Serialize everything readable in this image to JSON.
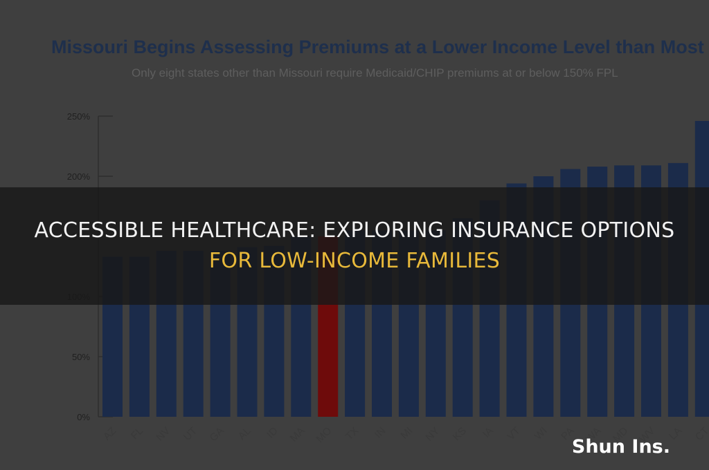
{
  "chart_data": {
    "type": "bar",
    "title": "Missouri Begins Assessing Premiums at a Lower Income Level than Most Stat",
    "subtitle": "Only eight states other than Missouri require Medicaid/CHIP premiums at or below 150% FPL",
    "categories": [
      "AZ",
      "FL",
      "NV",
      "UT",
      "GA",
      "AL",
      "ID",
      "MA",
      "MO",
      "TX",
      "IN",
      "MI",
      "NY",
      "KS",
      "IA",
      "VT",
      "WI",
      "PA",
      "WA",
      "MD",
      "WV",
      "LA",
      "CT"
    ],
    "values": [
      133,
      133,
      138,
      138,
      138,
      141,
      142,
      150,
      150,
      155,
      155,
      155,
      155,
      165,
      180,
      194,
      200,
      206,
      208,
      209,
      209,
      211,
      246
    ],
    "highlight": "MO",
    "ytick_labels": [
      "0%",
      "50%",
      "100%",
      "150%",
      "200%",
      "250%"
    ],
    "ytick_values": [
      0,
      50,
      100,
      150,
      200,
      250
    ],
    "ylim": [
      0,
      250
    ],
    "grid": false,
    "legend": "none",
    "colors": {
      "bar": "#1b2b4a",
      "highlight": "#6e0b0b",
      "title": "#1e2f4c",
      "text": "#5a5a5a"
    }
  },
  "headline": {
    "line1": "ACCESSIBLE HEALTHCARE: EXPLORING INSURANCE OPTIONS",
    "line2": "FOR LOW-INCOME FAMILIES"
  },
  "watermark": "Shun Ins."
}
